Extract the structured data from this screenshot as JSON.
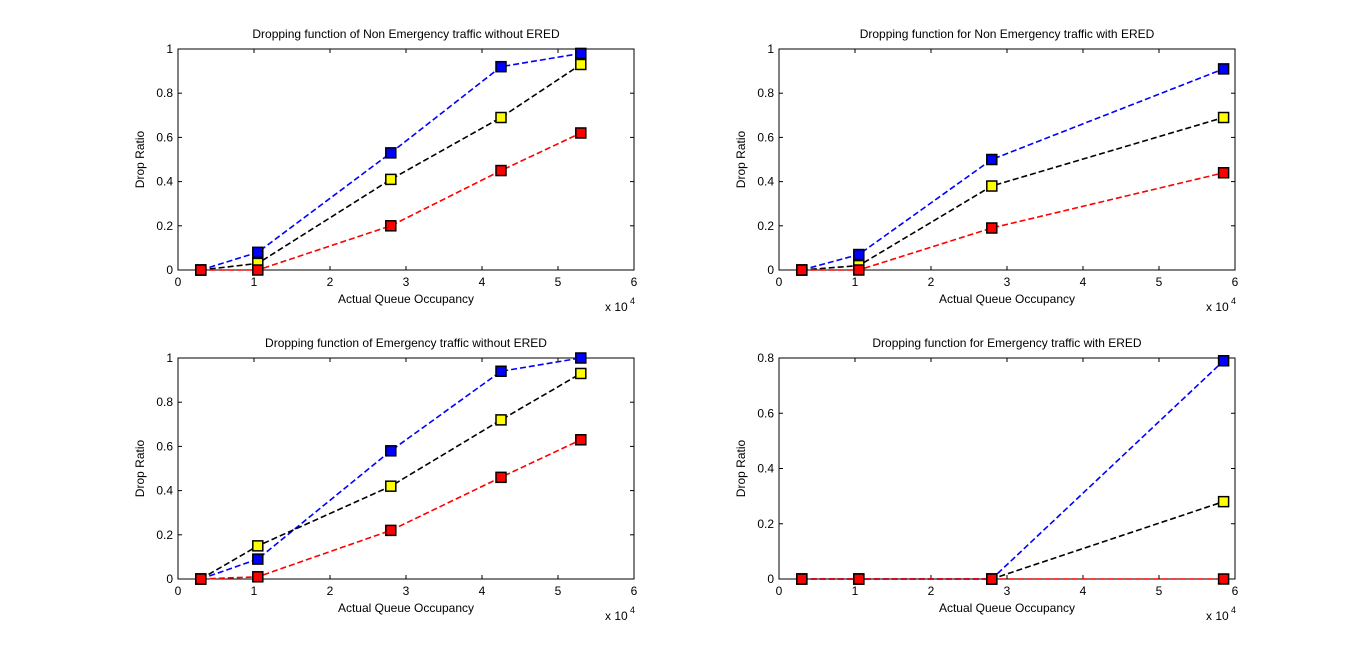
{
  "colors": {
    "background": "#ffffff",
    "axis": "#000000",
    "series": [
      "#0000ff",
      "#000000",
      "#ff0000"
    ],
    "markers": [
      "#0000ff",
      "#ffff00",
      "#ff0000"
    ]
  },
  "chart_data": [
    {
      "type": "line",
      "title": "Dropping function of Non Emergency traffic without ERED",
      "xlabel": "Actual Queue Occupancy",
      "ylabel": "Drop Ratio",
      "x_multiplier": "x 10",
      "x_exponent": "4",
      "xlim": [
        0,
        6
      ],
      "ylim": [
        0,
        1
      ],
      "xticks": [
        "0",
        "1",
        "2",
        "3",
        "4",
        "5",
        "6"
      ],
      "yticks": [
        "0",
        "0.2",
        "0.4",
        "0.6",
        "0.8",
        "1"
      ],
      "grid": false,
      "series": [
        {
          "color": "#0000ff",
          "marker": "#0000ff",
          "x": [
            0.3,
            1.05,
            2.8,
            4.25,
            5.3
          ],
          "values": [
            0,
            0.08,
            0.53,
            0.92,
            0.98
          ]
        },
        {
          "color": "#000000",
          "marker": "#ffff00",
          "x": [
            0.3,
            1.05,
            2.8,
            4.25,
            5.3
          ],
          "values": [
            0,
            0.03,
            0.41,
            0.69,
            0.93
          ]
        },
        {
          "color": "#ff0000",
          "marker": "#ff0000",
          "x": [
            0.3,
            1.05,
            2.8,
            4.25,
            5.3
          ],
          "values": [
            0,
            0,
            0.2,
            0.45,
            0.62
          ]
        }
      ]
    },
    {
      "type": "line",
      "title": "Dropping function for Non Emergency traffic with ERED",
      "xlabel": "Actual Queue Occupancy",
      "ylabel": "Drop Ratio",
      "x_multiplier": "x 10",
      "x_exponent": "4",
      "xlim": [
        0,
        6
      ],
      "ylim": [
        0,
        1
      ],
      "xticks": [
        "0",
        "1",
        "2",
        "3",
        "4",
        "5",
        "6"
      ],
      "yticks": [
        "0",
        "0.2",
        "0.4",
        "0.6",
        "0.8",
        "1"
      ],
      "grid": false,
      "series": [
        {
          "color": "#0000ff",
          "marker": "#0000ff",
          "x": [
            0.3,
            1.05,
            2.8,
            5.85
          ],
          "values": [
            0,
            0.07,
            0.5,
            0.91
          ]
        },
        {
          "color": "#000000",
          "marker": "#ffff00",
          "x": [
            0.3,
            1.05,
            2.8,
            5.85
          ],
          "values": [
            0,
            0.02,
            0.38,
            0.69
          ]
        },
        {
          "color": "#ff0000",
          "marker": "#ff0000",
          "x": [
            0.3,
            1.05,
            2.8,
            5.85
          ],
          "values": [
            0,
            0,
            0.19,
            0.44
          ]
        }
      ]
    },
    {
      "type": "line",
      "title": "Dropping function of Emergency traffic without ERED",
      "xlabel": "Actual Queue Occupancy",
      "ylabel": "Drop Ratio",
      "x_multiplier": "x 10",
      "x_exponent": "4",
      "xlim": [
        0,
        6
      ],
      "ylim": [
        0,
        1
      ],
      "xticks": [
        "0",
        "1",
        "2",
        "3",
        "4",
        "5",
        "6"
      ],
      "yticks": [
        "0",
        "0.2",
        "0.4",
        "0.6",
        "0.8",
        "1"
      ],
      "grid": false,
      "series": [
        {
          "color": "#0000ff",
          "marker": "#0000ff",
          "x": [
            0.3,
            1.05,
            2.8,
            4.25,
            5.3
          ],
          "values": [
            0,
            0.09,
            0.58,
            0.94,
            1.0
          ]
        },
        {
          "color": "#000000",
          "marker": "#ffff00",
          "x": [
            0.3,
            1.05,
            2.8,
            4.25,
            5.3
          ],
          "values": [
            0,
            0.15,
            0.42,
            0.72,
            0.93
          ]
        },
        {
          "color": "#ff0000",
          "marker": "#ff0000",
          "x": [
            0.3,
            1.05,
            2.8,
            4.25,
            5.3
          ],
          "values": [
            0,
            0.01,
            0.22,
            0.46,
            0.63
          ]
        }
      ]
    },
    {
      "type": "line",
      "title": "Dropping function for Emergency traffic with ERED",
      "xlabel": "Actual Queue Occupancy",
      "ylabel": "Drop Ratio",
      "x_multiplier": "x 10",
      "x_exponent": "4",
      "xlim": [
        0,
        6
      ],
      "ylim": [
        0,
        0.8
      ],
      "xticks": [
        "0",
        "1",
        "2",
        "3",
        "4",
        "5",
        "6"
      ],
      "yticks": [
        "0",
        "0.2",
        "0.4",
        "0.6",
        "0.8"
      ],
      "grid": false,
      "series": [
        {
          "color": "#0000ff",
          "marker": "#0000ff",
          "x": [
            0.3,
            1.05,
            2.8,
            5.85
          ],
          "values": [
            0,
            0,
            0,
            0.79
          ]
        },
        {
          "color": "#000000",
          "marker": "#ffff00",
          "x": [
            0.3,
            1.05,
            2.8,
            5.85
          ],
          "values": [
            0,
            0,
            0,
            0.28
          ]
        },
        {
          "color": "#ff0000",
          "marker": "#ff0000",
          "x": [
            0.3,
            1.05,
            2.8,
            5.85
          ],
          "values": [
            0,
            0,
            0,
            0
          ]
        }
      ]
    }
  ]
}
